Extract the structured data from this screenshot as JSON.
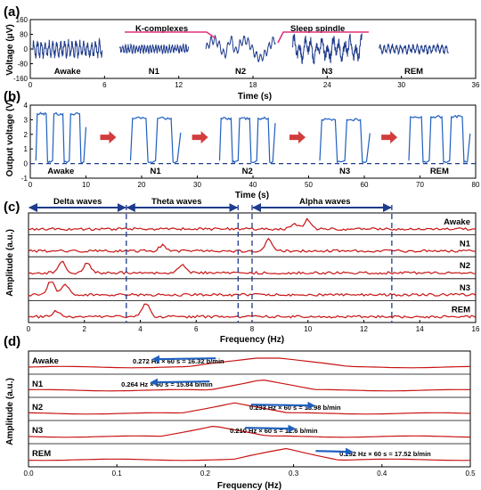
{
  "colors": {
    "navy": "#1f3b8c",
    "red": "#c81414",
    "pink": "#e0327a",
    "arrowRed": "#d23c3c",
    "blue": "#1f5fbf"
  },
  "chart_data": [
    {
      "panel": "(a)",
      "type": "line",
      "xlabel": "Time (s)",
      "ylabel": "Voltage (μV)",
      "xlim": [
        0,
        36
      ],
      "ylim": [
        -160,
        160
      ],
      "xticks": [
        0,
        6,
        12,
        18,
        24,
        30,
        36
      ],
      "yticks": [
        -160,
        -80,
        0,
        80,
        160
      ],
      "segments": [
        {
          "label": "Awake",
          "x_range": [
            0.2,
            5.8
          ],
          "amplitude": 55,
          "freq_hz": 3.2
        },
        {
          "label": "N1",
          "x_range": [
            7.2,
            12.8
          ],
          "amplitude": 28,
          "freq_hz": 4.5
        },
        {
          "label": "N2",
          "x_range": [
            14.2,
            19.8
          ],
          "amplitude": 110,
          "freq_hz": 1.5
        },
        {
          "label": "N3",
          "x_range": [
            21.2,
            26.8
          ],
          "amplitude": 75,
          "freq_hz": 2.2
        },
        {
          "label": "REM",
          "x_range": [
            28.2,
            33.8
          ],
          "amplitude": 30,
          "freq_hz": 3.0
        }
      ],
      "annotations": [
        "K-complexes",
        "Sleep spindle"
      ]
    },
    {
      "panel": "(b)",
      "type": "line",
      "xlabel": "Time (s)",
      "ylabel": "Output voltage (V)",
      "xlim": [
        0,
        80
      ],
      "ylim": [
        -1,
        4
      ],
      "xticks": [
        0,
        10,
        20,
        30,
        40,
        50,
        60,
        70,
        80
      ],
      "yticks": [
        -1,
        0,
        1,
        2,
        3,
        4
      ],
      "segments": [
        {
          "label": "Awake",
          "x_range": [
            1,
            10
          ],
          "high": 3.4,
          "pulses": 3
        },
        {
          "label": "N1",
          "x_range": [
            18,
            27
          ],
          "high": 3.1,
          "pulses": 2
        },
        {
          "label": "N2",
          "x_range": [
            34,
            44
          ],
          "high": 3.1,
          "pulses": 3
        },
        {
          "label": "N3",
          "x_range": [
            52,
            61
          ],
          "high": 3.0,
          "pulses": 2
        },
        {
          "label": "REM",
          "x_range": [
            68,
            79
          ],
          "high": 3.2,
          "pulses": 3
        }
      ]
    },
    {
      "panel": "(c)",
      "type": "line",
      "xlabel": "Frequency (Hz)",
      "ylabel": "Amplitude (a.u.)",
      "xlim": [
        0,
        16
      ],
      "xticks": [
        0,
        2,
        4,
        6,
        8,
        10,
        12,
        14,
        16
      ],
      "series": [
        {
          "name": "Awake",
          "peaks": [
            [
              10,
              0.6
            ],
            [
              9.5,
              0.35
            ]
          ]
        },
        {
          "name": "N1",
          "peaks": [
            [
              8.6,
              0.75
            ],
            [
              4.8,
              0.35
            ]
          ]
        },
        {
          "name": "N2",
          "peaks": [
            [
              1.2,
              0.7
            ],
            [
              2.1,
              0.6
            ],
            [
              5.5,
              0.5
            ]
          ]
        },
        {
          "name": "N3",
          "peaks": [
            [
              0.8,
              0.9
            ],
            [
              1.3,
              0.7
            ]
          ]
        },
        {
          "name": "REM",
          "peaks": [
            [
              4.2,
              0.95
            ],
            [
              1.0,
              0.35
            ]
          ]
        }
      ],
      "bands": [
        {
          "label": "Delta waves",
          "range": [
            0,
            3.5
          ]
        },
        {
          "label": "Theta waves",
          "range": [
            3.5,
            7.5
          ]
        },
        {
          "label": "Alpha waves",
          "range": [
            8,
            13
          ]
        }
      ]
    },
    {
      "panel": "(d)",
      "type": "line",
      "xlabel": "Frequency (Hz)",
      "ylabel": "Amplitude (a.u.)",
      "xlim": [
        0,
        0.5
      ],
      "xticks": [
        0.0,
        0.1,
        0.2,
        0.3,
        0.4,
        0.5
      ],
      "series": [
        {
          "name": "Awake",
          "peak_hz": 0.272,
          "annotation": "0.272 Hz × 60 s = 16.32 b/min"
        },
        {
          "name": "N1",
          "peak_hz": 0.264,
          "annotation": "0.264 Hz × 60 s = 15.84 b/min"
        },
        {
          "name": "N2",
          "peak_hz": 0.233,
          "annotation": "0.233 Hz × 60 s = 13.98 b/min"
        },
        {
          "name": "N3",
          "peak_hz": 0.21,
          "annotation": "0.210 Hz × 60 s = 12.6 b/min"
        },
        {
          "name": "REM",
          "peak_hz": 0.292,
          "annotation": "0.292 Hz × 60 s = 17.52 b/min"
        }
      ]
    }
  ]
}
